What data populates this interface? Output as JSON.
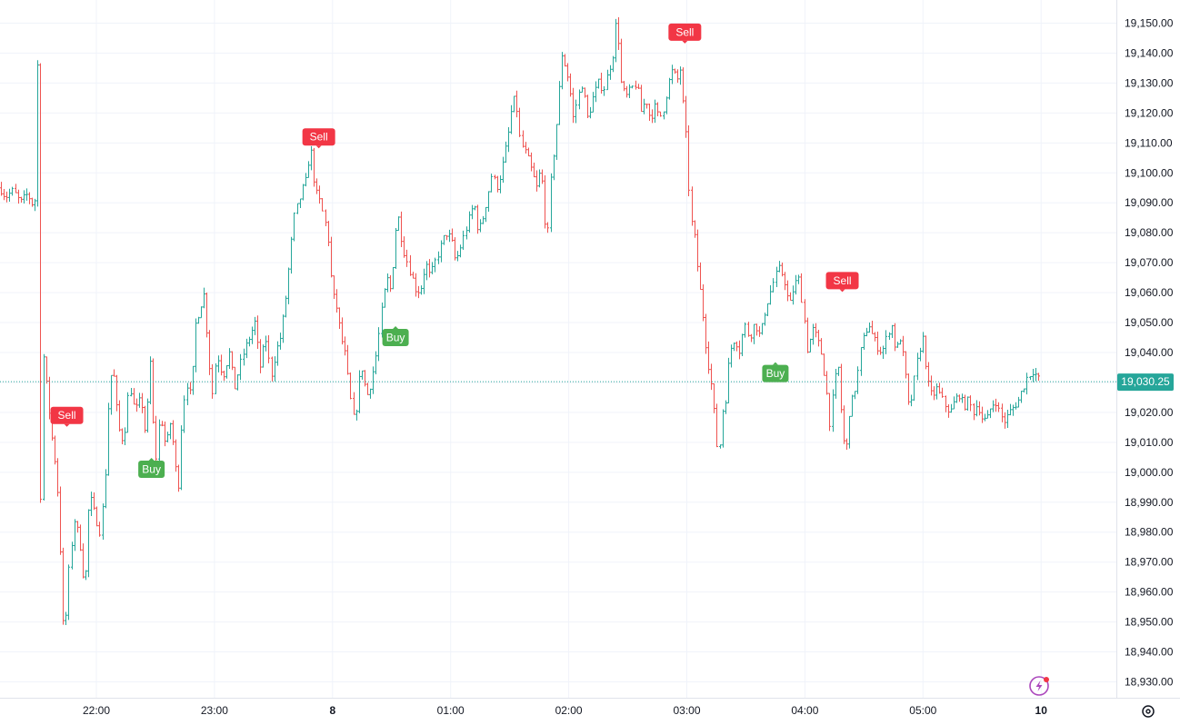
{
  "chart_data": {
    "type": "candlestick",
    "y_ticks": [
      19150,
      19140,
      19130,
      19120,
      19110,
      19100,
      19090,
      19080,
      19070,
      19060,
      19050,
      19040,
      19030,
      19020,
      19010,
      19000,
      18990,
      18980,
      18970,
      18960,
      18950,
      18940,
      18930
    ],
    "y_tick_labels": [
      "19,150.00",
      "19,140.00",
      "19,130.00",
      "19,120.00",
      "19,110.00",
      "19,100.00",
      "19,090.00",
      "19,080.00",
      "19,070.00",
      "19,060.00",
      "19,050.00",
      "19,040.00",
      "19,030.00",
      "19,020.00",
      "19,010.00",
      "19,000.00",
      "18,990.00",
      "18,980.00",
      "18,970.00",
      "18,960.00",
      "18,950.00",
      "18,940.00",
      "18,930.00"
    ],
    "ylim": [
      18925.5,
      19155.5
    ],
    "x_ticks": [
      "22:00",
      "23:00",
      "8",
      "01:00",
      "02:00",
      "03:00",
      "04:00",
      "05:00",
      "10"
    ],
    "current_price": 19030.25,
    "current_price_label": "19,030.25",
    "colors": {
      "up": "#26a69a",
      "down": "#ef5350",
      "buy": "#4caf50",
      "sell": "#f23645",
      "grid": "#f0f3fa"
    },
    "path": [
      [
        0,
        19095
      ],
      [
        6,
        19092
      ],
      [
        14,
        19094
      ],
      [
        22,
        19090
      ],
      [
        30,
        19093
      ],
      [
        38,
        19088
      ],
      [
        42,
        19146
      ],
      [
        44,
        18985
      ],
      [
        47,
        19040
      ],
      [
        52,
        19025
      ],
      [
        58,
        19008
      ],
      [
        62,
        19000
      ],
      [
        66,
        18975
      ],
      [
        70,
        18943
      ],
      [
        73,
        18955
      ],
      [
        76,
        18970
      ],
      [
        82,
        18985
      ],
      [
        88,
        18975
      ],
      [
        93,
        18960
      ],
      [
        98,
        18993
      ],
      [
        104,
        18986
      ],
      [
        110,
        18980
      ],
      [
        115,
        18995
      ],
      [
        120,
        19030
      ],
      [
        124,
        19035
      ],
      [
        130,
        19015
      ],
      [
        136,
        19010
      ],
      [
        142,
        19030
      ],
      [
        148,
        19020
      ],
      [
        155,
        19025
      ],
      [
        160,
        19012
      ],
      [
        166,
        19040
      ],
      [
        170,
        19000
      ],
      [
        176,
        19020
      ],
      [
        182,
        19008
      ],
      [
        188,
        19018
      ],
      [
        192,
        19003
      ],
      [
        197,
        18995
      ],
      [
        200,
        19020
      ],
      [
        205,
        19030
      ],
      [
        210,
        19025
      ],
      [
        215,
        19050
      ],
      [
        220,
        19055
      ],
      [
        224,
        19060
      ],
      [
        228,
        19045
      ],
      [
        233,
        19025
      ],
      [
        238,
        19040
      ],
      [
        245,
        19032
      ],
      [
        252,
        19040
      ],
      [
        258,
        19028
      ],
      [
        263,
        19035
      ],
      [
        268,
        19040
      ],
      [
        274,
        19045
      ],
      [
        280,
        19050
      ],
      [
        286,
        19035
      ],
      [
        292,
        19045
      ],
      [
        298,
        19032
      ],
      [
        303,
        19040
      ],
      [
        308,
        19045
      ],
      [
        313,
        19055
      ],
      [
        318,
        19070
      ],
      [
        323,
        19085
      ],
      [
        328,
        19090
      ],
      [
        333,
        19095
      ],
      [
        337,
        19098
      ],
      [
        341,
        19110
      ],
      [
        344,
        19100
      ],
      [
        348,
        19093
      ],
      [
        352,
        19090
      ],
      [
        356,
        19085
      ],
      [
        360,
        19080
      ],
      [
        365,
        19060
      ],
      [
        370,
        19055
      ],
      [
        375,
        19045
      ],
      [
        379,
        19040
      ],
      [
        383,
        19030
      ],
      [
        387,
        19020
      ],
      [
        390,
        19016
      ],
      [
        394,
        19030
      ],
      [
        398,
        19035
      ],
      [
        403,
        19025
      ],
      [
        408,
        19030
      ],
      [
        414,
        19040
      ],
      [
        420,
        19055
      ],
      [
        425,
        19065
      ],
      [
        430,
        19060
      ],
      [
        434,
        19080
      ],
      [
        438,
        19085
      ],
      [
        443,
        19075
      ],
      [
        448,
        19070
      ],
      [
        453,
        19065
      ],
      [
        458,
        19060
      ],
      [
        463,
        19062
      ],
      [
        468,
        19070
      ],
      [
        473,
        19065
      ],
      [
        478,
        19070
      ],
      [
        484,
        19075
      ],
      [
        490,
        19080
      ],
      [
        496,
        19078
      ],
      [
        501,
        19070
      ],
      [
        506,
        19075
      ],
      [
        511,
        19080
      ],
      [
        516,
        19085
      ],
      [
        521,
        19090
      ],
      [
        526,
        19080
      ],
      [
        531,
        19085
      ],
      [
        536,
        19092
      ],
      [
        541,
        19100
      ],
      [
        546,
        19095
      ],
      [
        551,
        19100
      ],
      [
        556,
        19108
      ],
      [
        560,
        19115
      ],
      [
        564,
        19125
      ],
      [
        568,
        19122
      ],
      [
        572,
        19110
      ],
      [
        576,
        19108
      ],
      [
        580,
        19105
      ],
      [
        585,
        19100
      ],
      [
        590,
        19095
      ],
      [
        595,
        19102
      ],
      [
        599,
        19085
      ],
      [
        602,
        19078
      ],
      [
        606,
        19100
      ],
      [
        610,
        19110
      ],
      [
        614,
        19125
      ],
      [
        618,
        19140
      ],
      [
        622,
        19135
      ],
      [
        626,
        19130
      ],
      [
        630,
        19118
      ],
      [
        635,
        19125
      ],
      [
        640,
        19130
      ],
      [
        646,
        19118
      ],
      [
        652,
        19125
      ],
      [
        658,
        19130
      ],
      [
        664,
        19128
      ],
      [
        670,
        19135
      ],
      [
        674,
        19140
      ],
      [
        678,
        19153
      ],
      [
        683,
        19130
      ],
      [
        688,
        19125
      ],
      [
        694,
        19128
      ],
      [
        700,
        19130
      ],
      [
        705,
        19120
      ],
      [
        710,
        19125
      ],
      [
        715,
        19118
      ],
      [
        720,
        19122
      ],
      [
        725,
        19118
      ],
      [
        730,
        19122
      ],
      [
        735,
        19130
      ],
      [
        740,
        19135
      ],
      [
        744,
        19130
      ],
      [
        748,
        19135
      ],
      [
        752,
        19120
      ],
      [
        755,
        19110
      ],
      [
        759,
        19085
      ],
      [
        763,
        19080
      ],
      [
        768,
        19065
      ],
      [
        772,
        19055
      ],
      [
        777,
        19040
      ],
      [
        782,
        19030
      ],
      [
        786,
        19018
      ],
      [
        790,
        19003
      ],
      [
        794,
        19020
      ],
      [
        798,
        19025
      ],
      [
        802,
        19040
      ],
      [
        808,
        19045
      ],
      [
        814,
        19040
      ],
      [
        818,
        19050
      ],
      [
        824,
        19045
      ],
      [
        830,
        19050
      ],
      [
        836,
        19045
      ],
      [
        842,
        19055
      ],
      [
        847,
        19060
      ],
      [
        852,
        19065
      ],
      [
        857,
        19068
      ],
      [
        862,
        19065
      ],
      [
        868,
        19055
      ],
      [
        873,
        19062
      ],
      [
        878,
        19065
      ],
      [
        883,
        19055
      ],
      [
        888,
        19040
      ],
      [
        893,
        19048
      ],
      [
        898,
        19045
      ],
      [
        903,
        19040
      ],
      [
        908,
        19030
      ],
      [
        913,
        19015
      ],
      [
        917,
        19030
      ],
      [
        922,
        19035
      ],
      [
        926,
        19015
      ],
      [
        930,
        19005
      ],
      [
        934,
        19020
      ],
      [
        938,
        19025
      ],
      [
        942,
        19030
      ],
      [
        946,
        19040
      ],
      [
        950,
        19045
      ],
      [
        955,
        19050
      ],
      [
        960,
        19045
      ],
      [
        965,
        19042
      ],
      [
        970,
        19040
      ],
      [
        975,
        19045
      ],
      [
        980,
        19050
      ],
      [
        985,
        19040
      ],
      [
        990,
        19045
      ],
      [
        995,
        19035
      ],
      [
        1000,
        19020
      ],
      [
        1005,
        19030
      ],
      [
        1010,
        19040
      ],
      [
        1015,
        19045
      ],
      [
        1020,
        19030
      ],
      [
        1025,
        19025
      ],
      [
        1030,
        19028
      ],
      [
        1035,
        19025
      ],
      [
        1040,
        19022
      ],
      [
        1045,
        19020
      ],
      [
        1050,
        19024
      ],
      [
        1055,
        19026
      ],
      [
        1060,
        19022
      ],
      [
        1065,
        19024
      ],
      [
        1070,
        19020
      ],
      [
        1075,
        19023
      ],
      [
        1080,
        19018
      ],
      [
        1085,
        19017
      ],
      [
        1090,
        19022
      ],
      [
        1095,
        19024
      ],
      [
        1100,
        19019
      ],
      [
        1105,
        19017
      ],
      [
        1110,
        19020
      ],
      [
        1115,
        19022
      ],
      [
        1120,
        19024
      ],
      [
        1125,
        19028
      ],
      [
        1130,
        19032
      ],
      [
        1136,
        19034
      ],
      [
        1142,
        19031
      ]
    ],
    "signals": [
      {
        "type": "Sell",
        "label": "Sell",
        "time": "21:45",
        "price": 19019
      },
      {
        "type": "Buy",
        "label": "Buy",
        "time": "22:28",
        "price": 19001
      },
      {
        "type": "Sell",
        "label": "Sell",
        "time": "23:53",
        "price": 19112
      },
      {
        "type": "Buy",
        "label": "Buy",
        "time": "00:32",
        "price": 19045
      },
      {
        "type": "Sell",
        "label": "Sell",
        "time": "02:59",
        "price": 19147
      },
      {
        "type": "Buy",
        "label": "Buy",
        "time": "03:45",
        "price": 19033
      },
      {
        "type": "Sell",
        "label": "Sell",
        "time": "04:19",
        "price": 19064
      }
    ]
  },
  "icons": {
    "lightning": "lightning-icon",
    "settings": "gear-icon"
  }
}
